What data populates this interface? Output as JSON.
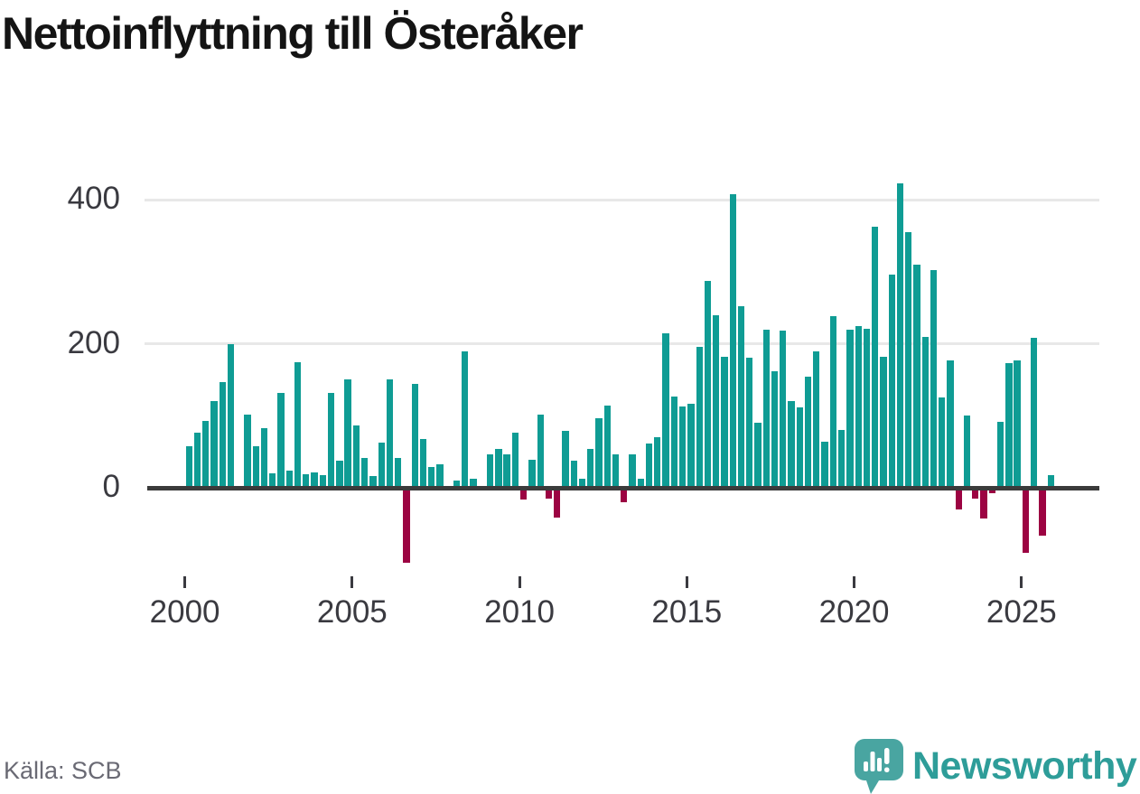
{
  "title": "Nettoinflyttning till Österåker",
  "source": "Källa: SCB",
  "logo": {
    "text": "Newsworthy"
  },
  "chart_data": {
    "type": "bar",
    "title": "Nettoinflyttning till Österåker",
    "frequency": "quarterly",
    "start_year": 2000,
    "end_year": 2025,
    "y_ticks": [
      0,
      200,
      400
    ],
    "x_ticks": [
      2000,
      2005,
      2010,
      2015,
      2020,
      2025
    ],
    "ylim": [
      -120,
      440
    ],
    "grid": "horizontal",
    "legend": "none",
    "colors": {
      "positive": "#0f9c94",
      "negative": "#9c0342"
    },
    "values": [
      58,
      77,
      93,
      120,
      147,
      199,
      0,
      102,
      58,
      83,
      20,
      132,
      24,
      174,
      19,
      21,
      17,
      132,
      37,
      151,
      86,
      42,
      16,
      63,
      151,
      42,
      -104,
      144,
      68,
      29,
      33,
      0,
      10,
      189,
      13,
      0,
      47,
      54,
      46,
      77,
      -16,
      39,
      101,
      -15,
      -41,
      79,
      38,
      13,
      54,
      97,
      114,
      46,
      -20,
      46,
      13,
      61,
      70,
      215,
      127,
      113,
      117,
      196,
      287,
      240,
      182,
      408,
      252,
      180,
      90,
      219,
      162,
      218,
      120,
      112,
      154,
      189,
      64,
      238,
      80,
      220,
      225,
      221,
      363,
      182,
      296,
      423,
      355,
      310,
      210,
      302,
      126,
      177,
      -30,
      100,
      -15,
      -43,
      -8,
      92,
      173,
      177,
      -90,
      208,
      -66,
      18
    ]
  }
}
